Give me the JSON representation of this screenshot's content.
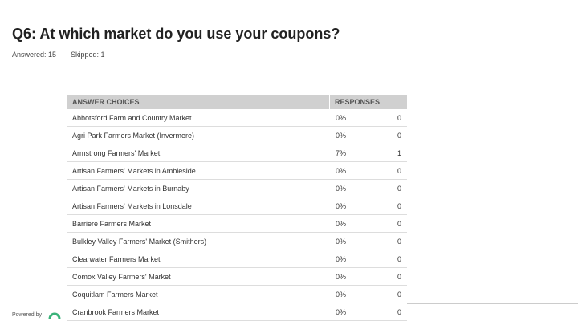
{
  "header": {
    "title": "Q6: At which market do you use your coupons?",
    "answered": "Answered: 15",
    "skipped": "Skipped: 1"
  },
  "table": {
    "columns": [
      "ANSWER CHOICES",
      "RESPONSES"
    ],
    "rows": [
      [
        "Abbotsford Farm and Country Market",
        "0%",
        "0"
      ],
      [
        "Agri Park Farmers Market (Invermere)",
        "0%",
        "0"
      ],
      [
        "Armstrong Farmers' Market",
        "7%",
        "1"
      ],
      [
        "Artisan Farmers' Markets in Ambleside",
        "0%",
        "0"
      ],
      [
        "Artisan Farmers' Markets in Burnaby",
        "0%",
        "0"
      ],
      [
        "Artisan Farmers' Markets in Lonsdale",
        "0%",
        "0"
      ],
      [
        "Barriere Farmers Market",
        "0%",
        "0"
      ],
      [
        "Bulkley Valley Farmers' Market (Smithers)",
        "0%",
        "0"
      ],
      [
        "Clearwater Farmers Market",
        "0%",
        "0"
      ],
      [
        "Comox Valley Farmers' Market",
        "0%",
        "0"
      ],
      [
        "Coquitlam Farmers Market",
        "0%",
        "0"
      ],
      [
        "Cranbrook Farmers Market",
        "0%",
        "0"
      ]
    ]
  },
  "footer": {
    "powered": "Powered by"
  }
}
